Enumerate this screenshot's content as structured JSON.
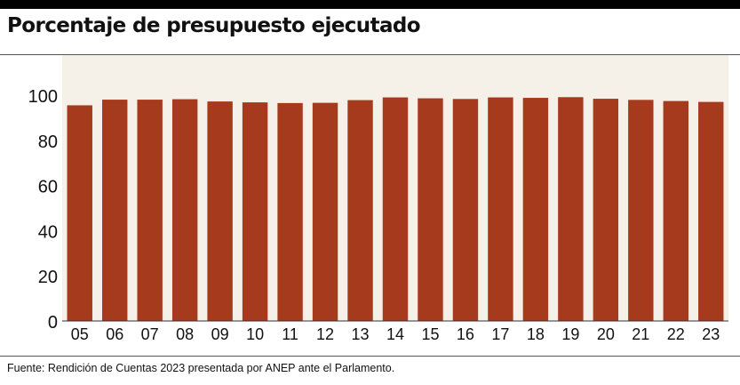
{
  "title": "Porcentaje de presupuesto ejecutado",
  "source": "Fuente: Rendición de Cuentas 2023 presentada por ANEP ante el Parlamento.",
  "colors": {
    "bar": "#a63a1c",
    "plot_background": "#f6f1e8",
    "axis_text": "#111111"
  },
  "chart_data": {
    "type": "bar",
    "categories": [
      "05",
      "06",
      "07",
      "08",
      "09",
      "10",
      "11",
      "12",
      "13",
      "14",
      "15",
      "16",
      "17",
      "18",
      "19",
      "20",
      "21",
      "22",
      "23"
    ],
    "values": [
      95.5,
      98,
      98,
      98.2,
      97.2,
      96.8,
      96.5,
      96.6,
      97.8,
      99,
      98.6,
      98.3,
      99,
      98.8,
      99.1,
      98.4,
      97.9,
      97.4,
      97
    ],
    "yticks": [
      0,
      20,
      40,
      60,
      80,
      100
    ],
    "ylim": [
      0,
      100
    ],
    "title": "",
    "xlabel": "",
    "ylabel": ""
  }
}
